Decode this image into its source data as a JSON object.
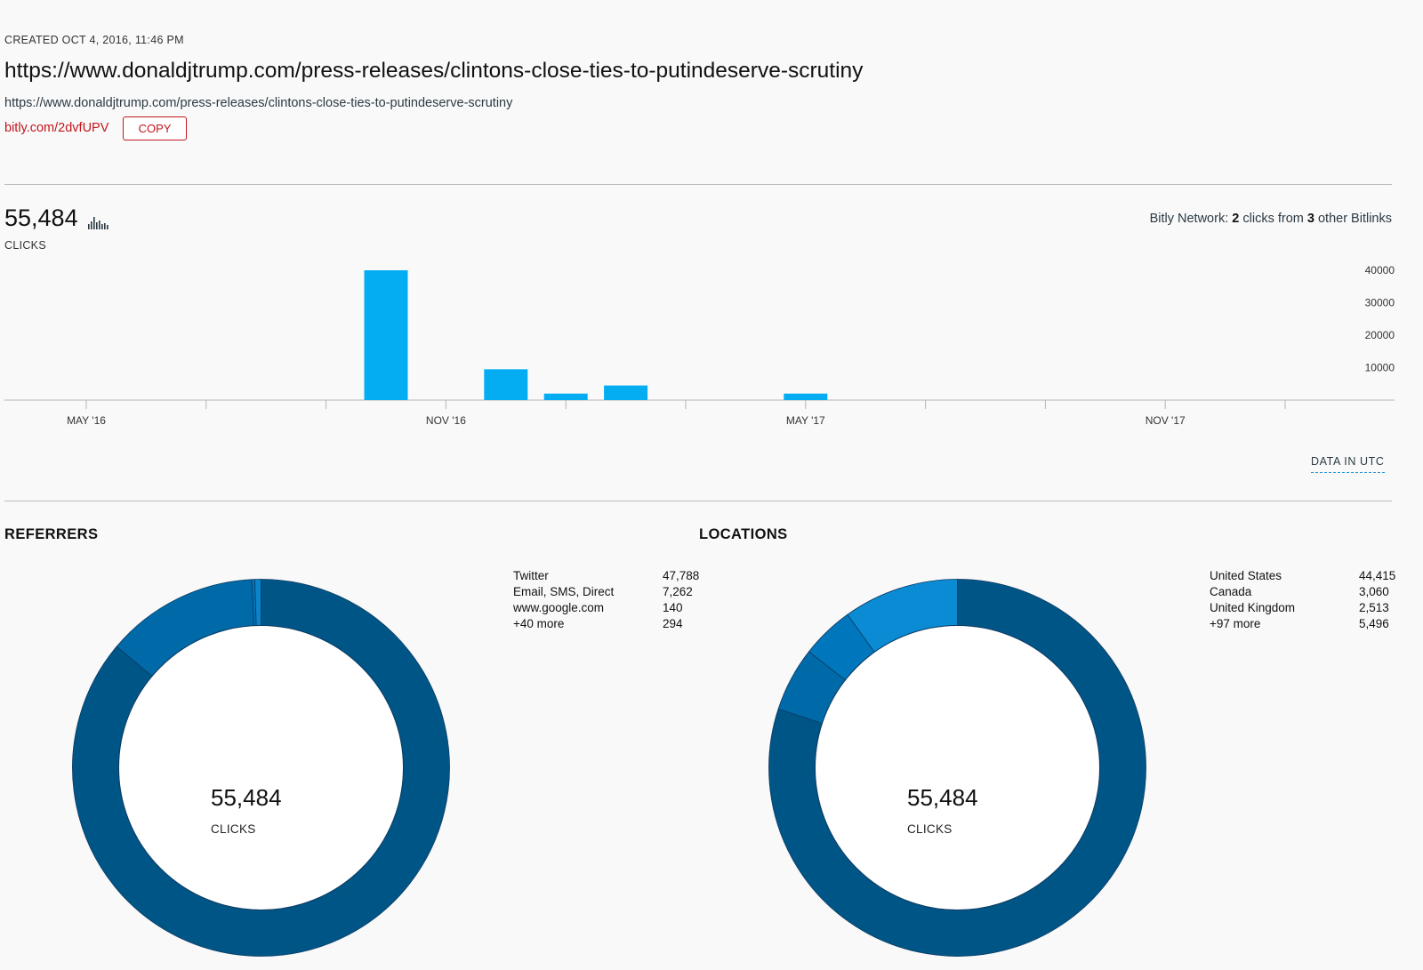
{
  "header": {
    "created": "CREATED OCT 4, 2016, 11:46 PM",
    "title": "https://www.donaldjtrump.com/press-releases/clintons-close-ties-to-putindeserve-scrutiny",
    "long_url": "https://www.donaldjtrump.com/press-releases/clintons-close-ties-to-putindeserve-scrutiny",
    "short_link": "bitly.com/2dvfUPV",
    "copy_label": "COPY"
  },
  "stats": {
    "total_clicks": "55,484",
    "clicks_label": "CLICKS",
    "network_prefix": "Bitly Network: ",
    "network_clicks": "2",
    "network_mid": " clicks from ",
    "network_links": "3",
    "network_suffix": " other Bitlinks",
    "utc_label": "DATA IN UTC"
  },
  "chart_data": {
    "type": "bar",
    "x_ticks": [
      "MAY '16",
      "NOV '16",
      "MAY '17",
      "NOV '17"
    ],
    "y_ticks": [
      10000,
      20000,
      30000,
      40000
    ],
    "ylim": [
      0,
      40000
    ],
    "bars": [
      {
        "month": "Oct 2016",
        "value": 40000
      },
      {
        "month": "Dec 2016",
        "value": 9500
      },
      {
        "month": "Jan 2017",
        "value": 2000
      },
      {
        "month": "Feb 2017",
        "value": 4500
      },
      {
        "month": "May 2017",
        "value": 2000
      }
    ],
    "bar_color": "#04adf2"
  },
  "referrers": {
    "title": "REFERRERS",
    "center_value": "55,484",
    "center_label": "CLICKS",
    "items": [
      {
        "label": "Twitter",
        "value": "47,788",
        "count": 47788,
        "color": "#005587"
      },
      {
        "label": "Email, SMS, Direct",
        "value": "7,262",
        "count": 7262,
        "color": "#0069a8"
      },
      {
        "label": "www.google.com",
        "value": "140",
        "count": 140,
        "color": "#0076bc"
      },
      {
        "label": "+40 more",
        "value": "294",
        "count": 294,
        "color": "#0a84cc"
      }
    ]
  },
  "locations": {
    "title": "LOCATIONS",
    "center_value": "55,484",
    "center_label": "CLICKS",
    "items": [
      {
        "label": "United States",
        "value": "44,415",
        "count": 44415,
        "color": "#005587"
      },
      {
        "label": "Canada",
        "value": "3,060",
        "count": 3060,
        "color": "#0069a8"
      },
      {
        "label": "United Kingdom",
        "value": "2,513",
        "count": 2513,
        "color": "#0076bc"
      },
      {
        "label": "+97 more",
        "value": "5,496",
        "count": 5496,
        "color": "#0a8bd4"
      }
    ]
  }
}
